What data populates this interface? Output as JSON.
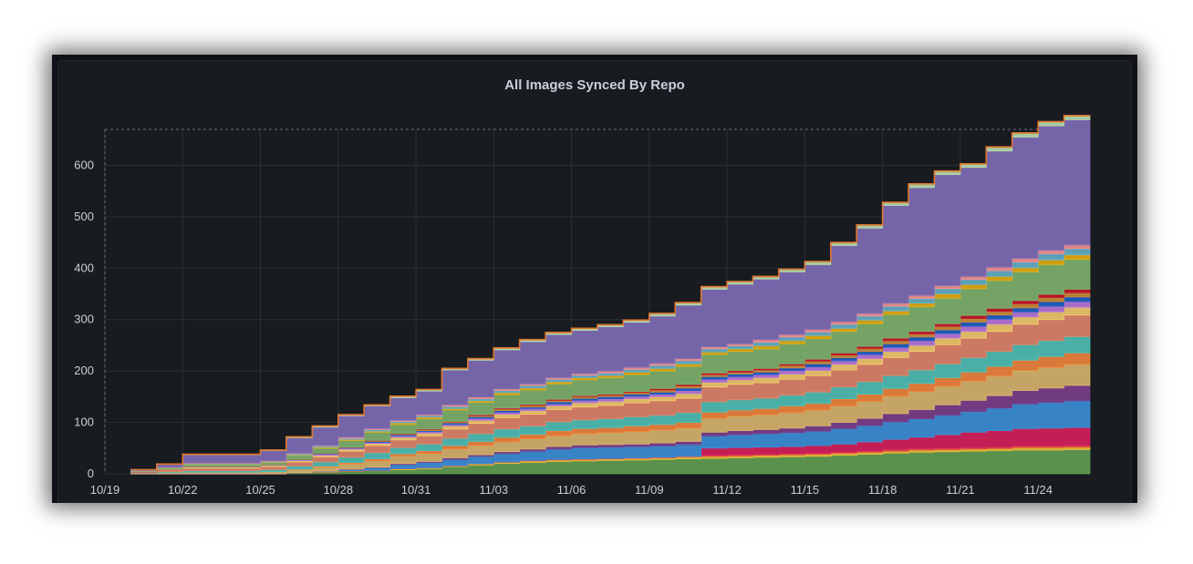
{
  "panel": {
    "title": "All Images Synced By Repo"
  },
  "chart_data": {
    "type": "area",
    "stacked": true,
    "title": "All Images Synced By Repo",
    "xlabel": "",
    "ylabel": "",
    "x_ticks": [
      "10/19",
      "10/22",
      "10/25",
      "10/28",
      "10/31",
      "11/03",
      "11/06",
      "11/09",
      "11/12",
      "11/15",
      "11/18",
      "11/21",
      "11/24"
    ],
    "y_ticks": [
      0,
      100,
      200,
      300,
      400,
      500,
      600
    ],
    "ylim": [
      0,
      670
    ],
    "x_start": "10/19",
    "x_end": "11/26",
    "grid": true,
    "legend": "none",
    "total_outline_color": "#e0752d",
    "x": [
      "10/20",
      "10/21",
      "10/22",
      "10/23",
      "10/24",
      "10/25",
      "10/26",
      "10/27",
      "10/28",
      "10/29",
      "10/30",
      "10/31",
      "11/01",
      "11/02",
      "11/03",
      "11/04",
      "11/05",
      "11/06",
      "11/07",
      "11/08",
      "11/09",
      "11/10",
      "11/11",
      "11/12",
      "11/13",
      "11/14",
      "11/15",
      "11/16",
      "11/17",
      "11/18",
      "11/19",
      "11/20",
      "11/21",
      "11/22",
      "11/23",
      "11/24",
      "11/25",
      "11/26"
    ],
    "series": [
      {
        "color": "#629e51",
        "values": [
          0,
          0,
          0,
          0,
          0,
          0,
          2,
          3,
          5,
          6,
          8,
          10,
          14,
          17,
          20,
          22,
          24,
          25,
          26,
          27,
          28,
          29,
          30,
          31,
          32,
          33,
          34,
          36,
          38,
          40,
          42,
          43,
          44,
          45,
          46,
          46,
          47,
          47
        ]
      },
      {
        "color": "#eab839",
        "values": [
          0,
          0,
          0,
          0,
          0,
          0,
          0,
          1,
          1,
          1,
          2,
          2,
          2,
          3,
          3,
          3,
          3,
          3,
          3,
          3,
          3,
          4,
          4,
          4,
          4,
          4,
          4,
          4,
          4,
          4,
          4,
          4,
          4,
          4,
          5,
          5,
          5,
          5
        ]
      },
      {
        "color": "#e24d42",
        "values": [
          0,
          0,
          0,
          0,
          0,
          0,
          0,
          0,
          0,
          0,
          0,
          0,
          0,
          0,
          0,
          1,
          1,
          1,
          1,
          1,
          1,
          1,
          2,
          2,
          2,
          2,
          2,
          2,
          2,
          3,
          3,
          3,
          3,
          3,
          3,
          3,
          3,
          3
        ]
      },
      {
        "color": "#d6205c",
        "values": [
          0,
          0,
          0,
          0,
          0,
          0,
          0,
          0,
          0,
          0,
          0,
          0,
          0,
          0,
          0,
          0,
          0,
          0,
          0,
          0,
          0,
          0,
          14,
          14,
          14,
          14,
          15,
          16,
          18,
          20,
          22,
          26,
          30,
          32,
          34,
          35,
          35,
          35
        ]
      },
      {
        "color": "#3b8fd8",
        "values": [
          0,
          0,
          0,
          0,
          0,
          0,
          0,
          1,
          2,
          5,
          8,
          10,
          12,
          14,
          16,
          18,
          20,
          22,
          22,
          22,
          22,
          23,
          24,
          25,
          26,
          27,
          28,
          30,
          32,
          34,
          36,
          38,
          40,
          44,
          48,
          50,
          52,
          52
        ]
      },
      {
        "color": "#7b3f8c",
        "values": [
          0,
          0,
          0,
          0,
          0,
          0,
          0,
          0,
          1,
          1,
          2,
          2,
          3,
          3,
          4,
          4,
          5,
          5,
          5,
          5,
          6,
          6,
          7,
          8,
          8,
          9,
          10,
          12,
          14,
          16,
          18,
          20,
          22,
          24,
          26,
          28,
          30,
          30
        ]
      },
      {
        "color": "#d7b56d",
        "values": [
          1,
          2,
          3,
          3,
          3,
          4,
          6,
          8,
          10,
          12,
          14,
          15,
          17,
          18,
          19,
          20,
          21,
          22,
          23,
          24,
          25,
          26,
          27,
          28,
          29,
          30,
          31,
          32,
          33,
          34,
          35,
          36,
          37,
          38,
          39,
          40,
          41,
          41
        ]
      },
      {
        "color": "#ef843c",
        "values": [
          0,
          0,
          0,
          0,
          0,
          0,
          1,
          2,
          3,
          4,
          5,
          6,
          7,
          8,
          9,
          9,
          10,
          10,
          10,
          11,
          11,
          11,
          12,
          12,
          12,
          13,
          13,
          14,
          14,
          15,
          16,
          17,
          18,
          19,
          20,
          21,
          22,
          22
        ]
      },
      {
        "color": "#4fc0b6",
        "values": [
          1,
          2,
          3,
          3,
          3,
          4,
          6,
          8,
          10,
          12,
          12,
          13,
          14,
          15,
          16,
          16,
          17,
          17,
          17,
          18,
          18,
          19,
          20,
          20,
          20,
          21,
          22,
          23,
          24,
          25,
          26,
          27,
          28,
          29,
          30,
          31,
          32,
          32
        ]
      },
      {
        "color": "#e0846a",
        "values": [
          2,
          4,
          5,
          5,
          5,
          6,
          8,
          10,
          12,
          14,
          15,
          16,
          18,
          20,
          22,
          23,
          24,
          25,
          26,
          27,
          28,
          28,
          29,
          30,
          30,
          31,
          32,
          33,
          34,
          35,
          36,
          37,
          38,
          39,
          40,
          41,
          42,
          42
        ]
      },
      {
        "color": "#f2c96d",
        "values": [
          0,
          1,
          2,
          2,
          2,
          2,
          3,
          3,
          4,
          4,
          5,
          5,
          6,
          6,
          7,
          7,
          7,
          8,
          8,
          8,
          8,
          9,
          9,
          9,
          10,
          10,
          10,
          11,
          11,
          12,
          12,
          13,
          13,
          14,
          14,
          15,
          15,
          15
        ]
      },
      {
        "color": "#b877d9",
        "values": [
          0,
          0,
          1,
          1,
          1,
          1,
          1,
          2,
          2,
          2,
          3,
          3,
          3,
          4,
          4,
          4,
          4,
          5,
          5,
          5,
          5,
          6,
          6,
          6,
          6,
          7,
          7,
          7,
          8,
          8,
          9,
          9,
          10,
          10,
          10,
          11,
          11,
          11
        ]
      },
      {
        "color": "#1f60c4",
        "values": [
          0,
          0,
          0,
          0,
          0,
          0,
          1,
          1,
          1,
          2,
          2,
          2,
          3,
          3,
          3,
          3,
          4,
          4,
          4,
          4,
          4,
          5,
          5,
          5,
          5,
          5,
          6,
          6,
          6,
          7,
          7,
          7,
          8,
          8,
          8,
          9,
          9,
          9
        ]
      },
      {
        "color": "#ca8b3a",
        "values": [
          0,
          0,
          0,
          0,
          0,
          0,
          0,
          1,
          1,
          1,
          1,
          2,
          2,
          2,
          3,
          3,
          3,
          3,
          3,
          3,
          4,
          4,
          4,
          4,
          4,
          5,
          5,
          5,
          6,
          6,
          6,
          7,
          7,
          7,
          8,
          8,
          8,
          8
        ]
      },
      {
        "color": "#c4162a",
        "values": [
          0,
          0,
          0,
          0,
          0,
          0,
          0,
          0,
          0,
          1,
          1,
          1,
          1,
          2,
          2,
          2,
          2,
          2,
          2,
          2,
          3,
          3,
          3,
          3,
          3,
          3,
          4,
          4,
          4,
          5,
          5,
          5,
          6,
          6,
          6,
          6,
          7,
          7
        ]
      },
      {
        "color": "#7eb26d",
        "values": [
          2,
          3,
          4,
          4,
          4,
          5,
          8,
          10,
          13,
          16,
          18,
          20,
          22,
          24,
          26,
          28,
          30,
          31,
          32,
          33,
          34,
          35,
          36,
          37,
          38,
          39,
          40,
          42,
          44,
          46,
          48,
          50,
          52,
          54,
          56,
          58,
          58,
          58
        ]
      },
      {
        "color": "#e5ac0e",
        "values": [
          0,
          0,
          1,
          1,
          1,
          1,
          1,
          2,
          2,
          2,
          3,
          3,
          3,
          3,
          4,
          4,
          4,
          4,
          4,
          5,
          5,
          5,
          5,
          5,
          6,
          6,
          6,
          6,
          7,
          7,
          7,
          8,
          8,
          8,
          8,
          9,
          9,
          9
        ]
      },
      {
        "color": "#64b0c8",
        "values": [
          0,
          1,
          1,
          1,
          1,
          1,
          2,
          2,
          2,
          3,
          3,
          3,
          4,
          4,
          4,
          5,
          5,
          5,
          5,
          5,
          6,
          6,
          6,
          6,
          7,
          7,
          7,
          8,
          8,
          9,
          9,
          10,
          10,
          11,
          11,
          12,
          12,
          12
        ]
      },
      {
        "color": "#f29191",
        "values": [
          0,
          0,
          1,
          1,
          1,
          1,
          1,
          1,
          2,
          2,
          2,
          2,
          3,
          3,
          3,
          3,
          3,
          3,
          4,
          4,
          4,
          4,
          4,
          4,
          5,
          5,
          5,
          5,
          5,
          6,
          6,
          6,
          6,
          7,
          7,
          7,
          7,
          7
        ]
      },
      {
        "color": "#806eb7",
        "values": [
          2,
          6,
          16,
          16,
          16,
          20,
          30,
          36,
          42,
          44,
          44,
          46,
          68,
          72,
          76,
          82,
          84,
          84,
          86,
          88,
          92,
          104,
          112,
          116,
          118,
          122,
          126,
          148,
          166,
          190,
          210,
          216,
          212,
          226,
          236,
          242,
          244,
          244
        ]
      },
      {
        "color": "#b7dbab",
        "values": [
          0,
          0,
          1,
          1,
          1,
          1,
          2,
          2,
          2,
          2,
          3,
          3,
          3,
          3,
          4,
          4,
          4,
          4,
          4,
          4,
          5,
          5,
          5,
          5,
          5,
          5,
          6,
          6,
          6,
          6,
          7,
          7,
          7,
          8,
          8,
          8,
          8,
          8
        ]
      }
    ]
  }
}
